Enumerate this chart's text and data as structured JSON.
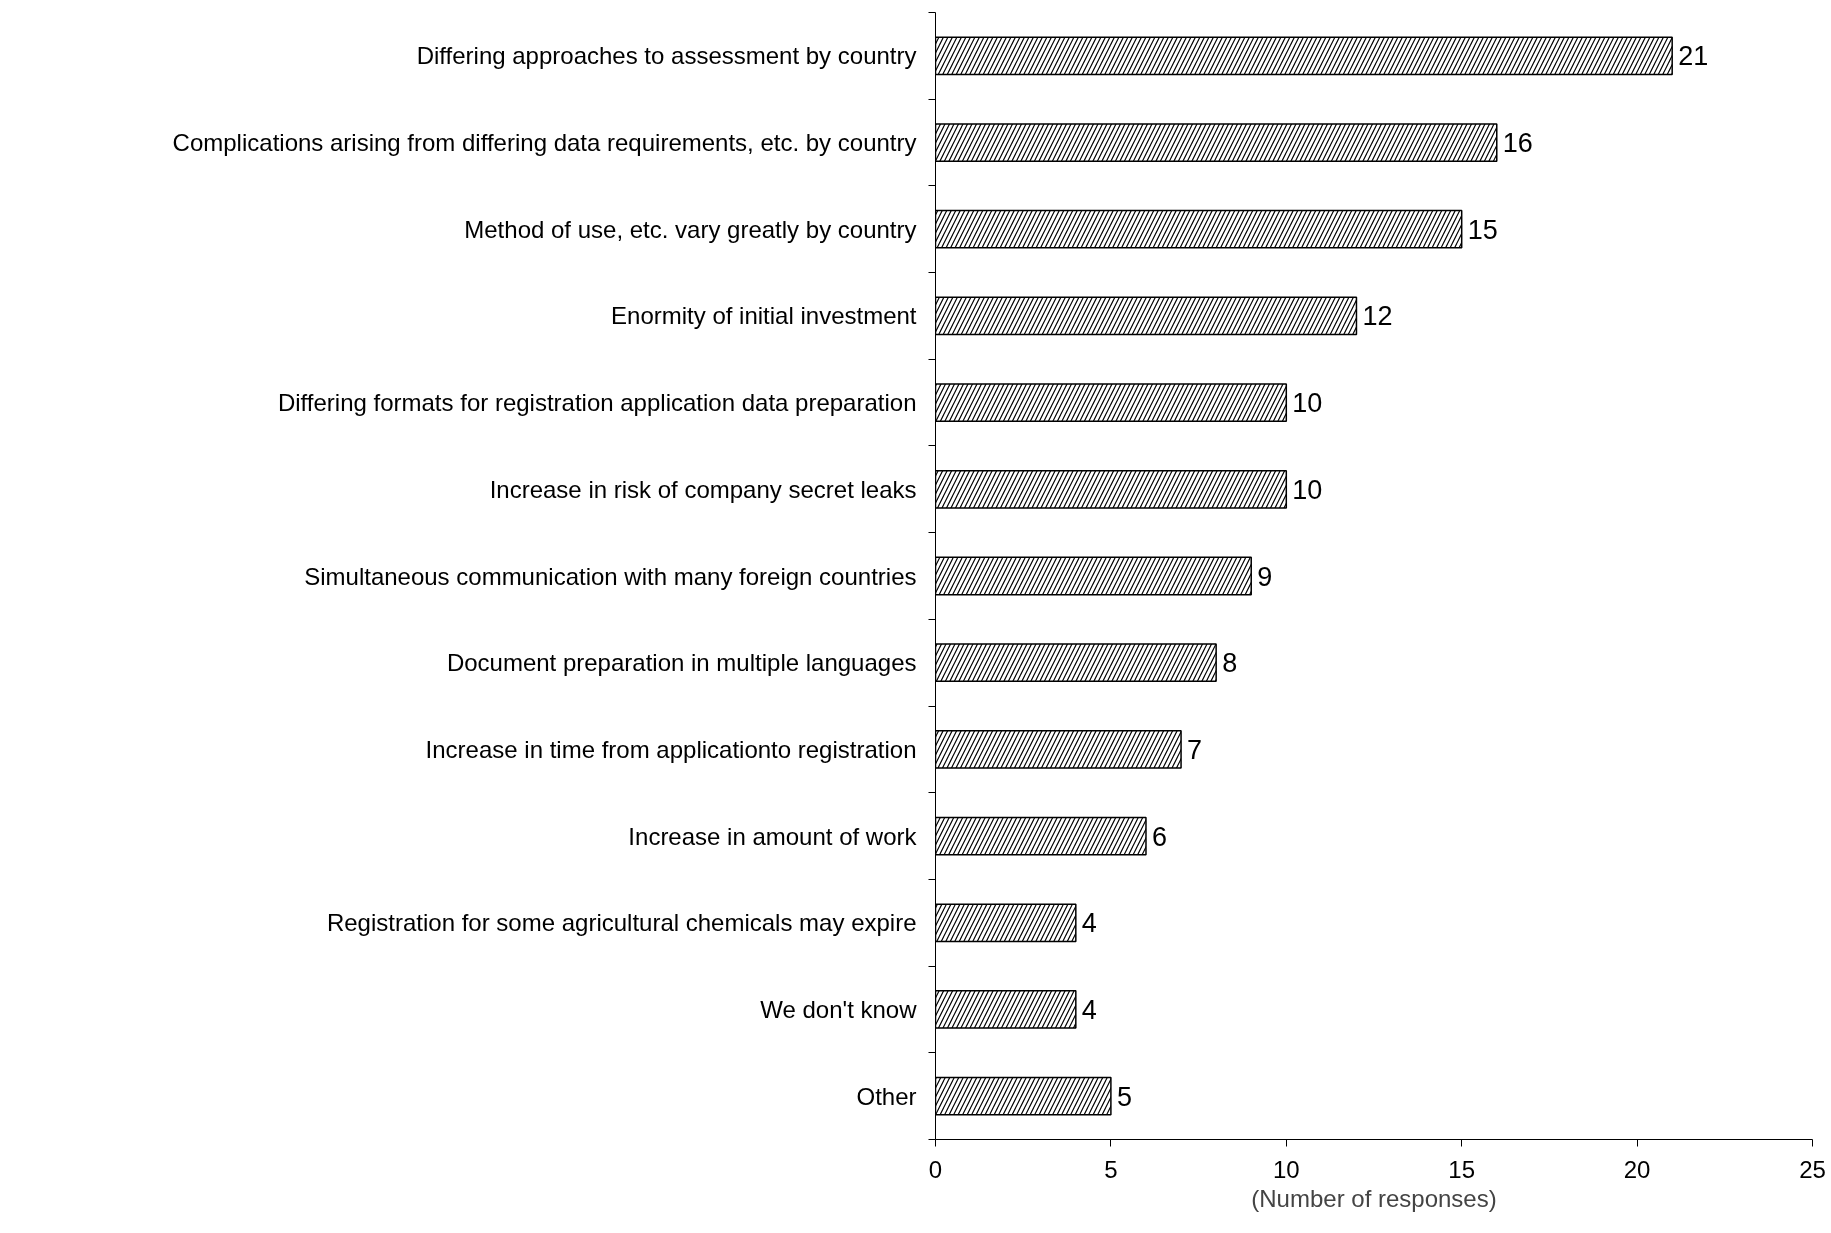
{
  "chart_data": {
    "type": "bar",
    "orientation": "horizontal",
    "xlabel": "(Number of responses)",
    "categories": [
      "Differing approaches to assessment by country",
      "Complications arising from differing data requirements, etc. by country",
      "Method of use, etc. vary greatly by country",
      "Enormity of initial investment",
      "Differing formats for registration application data preparation",
      "Increase in risk of company secret leaks",
      "Simultaneous communication with many foreign countries",
      "Document preparation in multiple languages",
      "Increase in time from applicationto registration",
      "Increase in amount of work",
      "Registration for some agricultural chemicals may expire",
      "We don't know",
      "Other"
    ],
    "values": [
      21,
      16,
      15,
      12,
      10,
      10,
      9,
      8,
      7,
      6,
      4,
      4,
      5
    ],
    "color": "#000000",
    "xlim": [
      0,
      25
    ],
    "xticks": [
      0,
      5,
      10,
      15,
      20,
      25
    ],
    "data_labels": true
  }
}
